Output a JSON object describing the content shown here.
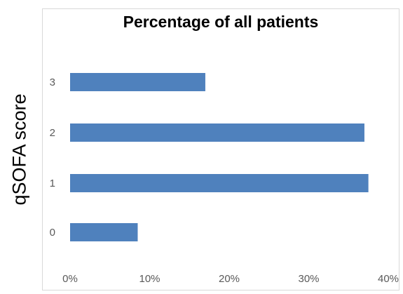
{
  "chart_data": {
    "type": "bar",
    "orientation": "horizontal",
    "title": "Percentage of all patients",
    "ylabel": "qSOFA score",
    "xlabel": "",
    "categories": [
      "0",
      "1",
      "2",
      "3"
    ],
    "values": [
      8.5,
      37.5,
      37.0,
      17.0
    ],
    "value_unit": "%",
    "xlim": [
      0,
      40
    ],
    "xticks": [
      "0%",
      "10%",
      "20%",
      "30%",
      "40%"
    ],
    "xtick_values": [
      0,
      10,
      20,
      30,
      40
    ],
    "grid": false,
    "bar_color": "#4f81bd"
  }
}
